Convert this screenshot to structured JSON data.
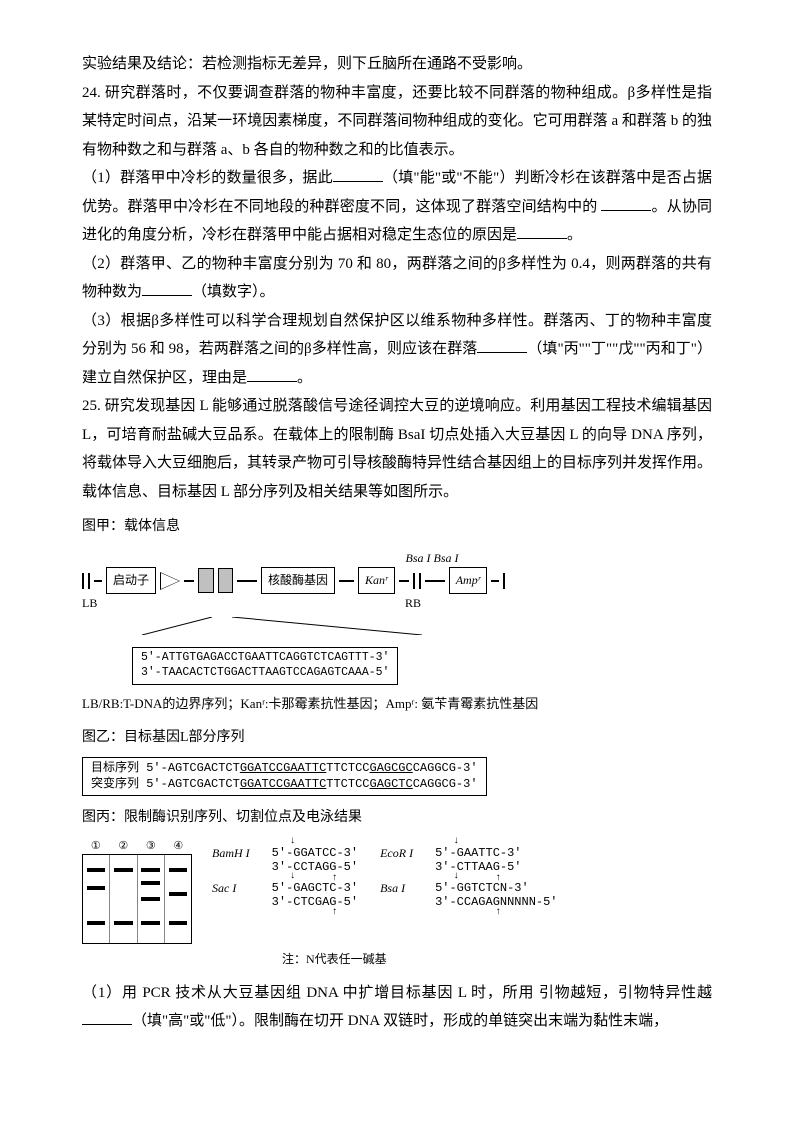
{
  "p1": "实验结果及结论：若检测指标无差异，则下丘脑所在通路不受影响。",
  "p2": "24. 研究群落时，不仅要调查群落的物种丰富度，还要比较不同群落的物种组成。β多样性是指某特定时间点，沿某一环境因素梯度，不同群落间物种组成的变化。它可用群落 a 和群落 b 的独有物种数之和与群落 a、b 各自的物种数之和的比值表示。",
  "p3a": "（1）群落甲中冷杉的数量很多，据此",
  "p3b": "（填\"能\"或\"不能\"）判断冷杉在该群落中是否占据优势。群落甲中冷杉在不同地段的种群密度不同，这体现了群落空间结构中的",
  "p3c": "。从协同进化的角度分析，冷杉在群落甲中能占据相对稳定生态位的原因是",
  "p3d": "。",
  "p4a": "（2）群落甲、乙的物种丰富度分别为 70 和 80，两群落之间的β多样性为 0.4，则两群落的共有物种数为",
  "p4b": "（填数字）。",
  "p5a": "（3）根据β多样性可以科学合理规划自然保护区以维系物种多样性。群落丙、丁的物种丰富度分别为 56 和 98，若两群落之间的β多样性高，则应该在群落",
  "p5b": "（填\"丙\"\"丁\"\"戊\"\"丙和丁\"）建立自然保护区，理由是",
  "p5c": "。",
  "p6": "25. 研究发现基因 L 能够通过脱落酸信号途径调控大豆的逆境响应。利用基因工程技术编辑基因 L，可培育耐盐碱大豆品系。在载体上的限制酶 BsaI 切点处插入大豆基因 L 的向导 DNA 序列，将载体导入大豆细胞后，其转录产物可引导核酸酶特异性结合基因组上的目标序列并发挥作用。载体信息、目标基因 L 部分序列及相关结果等如图所示。",
  "fig1": {
    "title": "图甲：载体信息",
    "bsa": "Bsa I Bsa I",
    "lb": "LB",
    "promoter": "启动子",
    "nuclease": "核酸酶基因",
    "kan": "Kanʳ",
    "rb": "RB",
    "amp": "Ampʳ",
    "seq1": "5'-ATTGTGAGACCTGAATTCAGGTCTCAGTTT-3'",
    "seq2": "3'-TAACACTCTGGACTTAAGTCCAGAGTCAAA-5'",
    "legend": "LB/RB:T-DNA的边界序列；Kanʳ:卡那霉素抗性基因；Ampʳ: 氨苄青霉素抗性基因"
  },
  "fig2": {
    "title": "图乙：目标基因L部分序列",
    "row1_label": "目标序列",
    "row1_seq": "5'-AGTCGACTCTGGATCCGAATTCTTCTCCGAGCGCCAGGCG-3'",
    "row2_label": "突变序列",
    "row2_seq": "5'-AGTCGACTCTGGATCCGAATTCTTCTCCGAGCTCCAGGCG-3'"
  },
  "fig3": {
    "title": "图丙：限制酶识别序列、切割位点及电泳结果",
    "lanes": [
      "①",
      "②",
      "③",
      "④"
    ],
    "bands": {
      "1": [
        15,
        35,
        75
      ],
      "2": [
        15,
        75
      ],
      "3": [
        15,
        30,
        48,
        75
      ],
      "4": [
        15,
        42,
        75
      ]
    },
    "enzymes": [
      {
        "name": "BamH I",
        "top": "5'-GGATCC-3'",
        "bot": "3'-CCTAGG-5'"
      },
      {
        "name": "EcoR I",
        "top": "5'-GAATTC-3'",
        "bot": "3'-CTTAAG-5'"
      },
      {
        "name": "Sac I",
        "top": "5'-GAGCTC-3'",
        "bot": "3'-CTCGAG-5'"
      },
      {
        "name": "Bsa I",
        "top": "5'-GGTCTCN-3'",
        "bot": "3'-CCAGAGNNNNN-5'"
      }
    ],
    "note": "注：N代表任一碱基"
  },
  "p7a": "（1）用 PCR 技术从大豆基因组 DNA 中扩增目标基因 L 时，所用 引物越短，引物特异性越",
  "p7b": "（填\"高\"或\"低\"）。限制酶在切开 DNA 双链时，形成的单链突出末端为黏性末端，"
}
